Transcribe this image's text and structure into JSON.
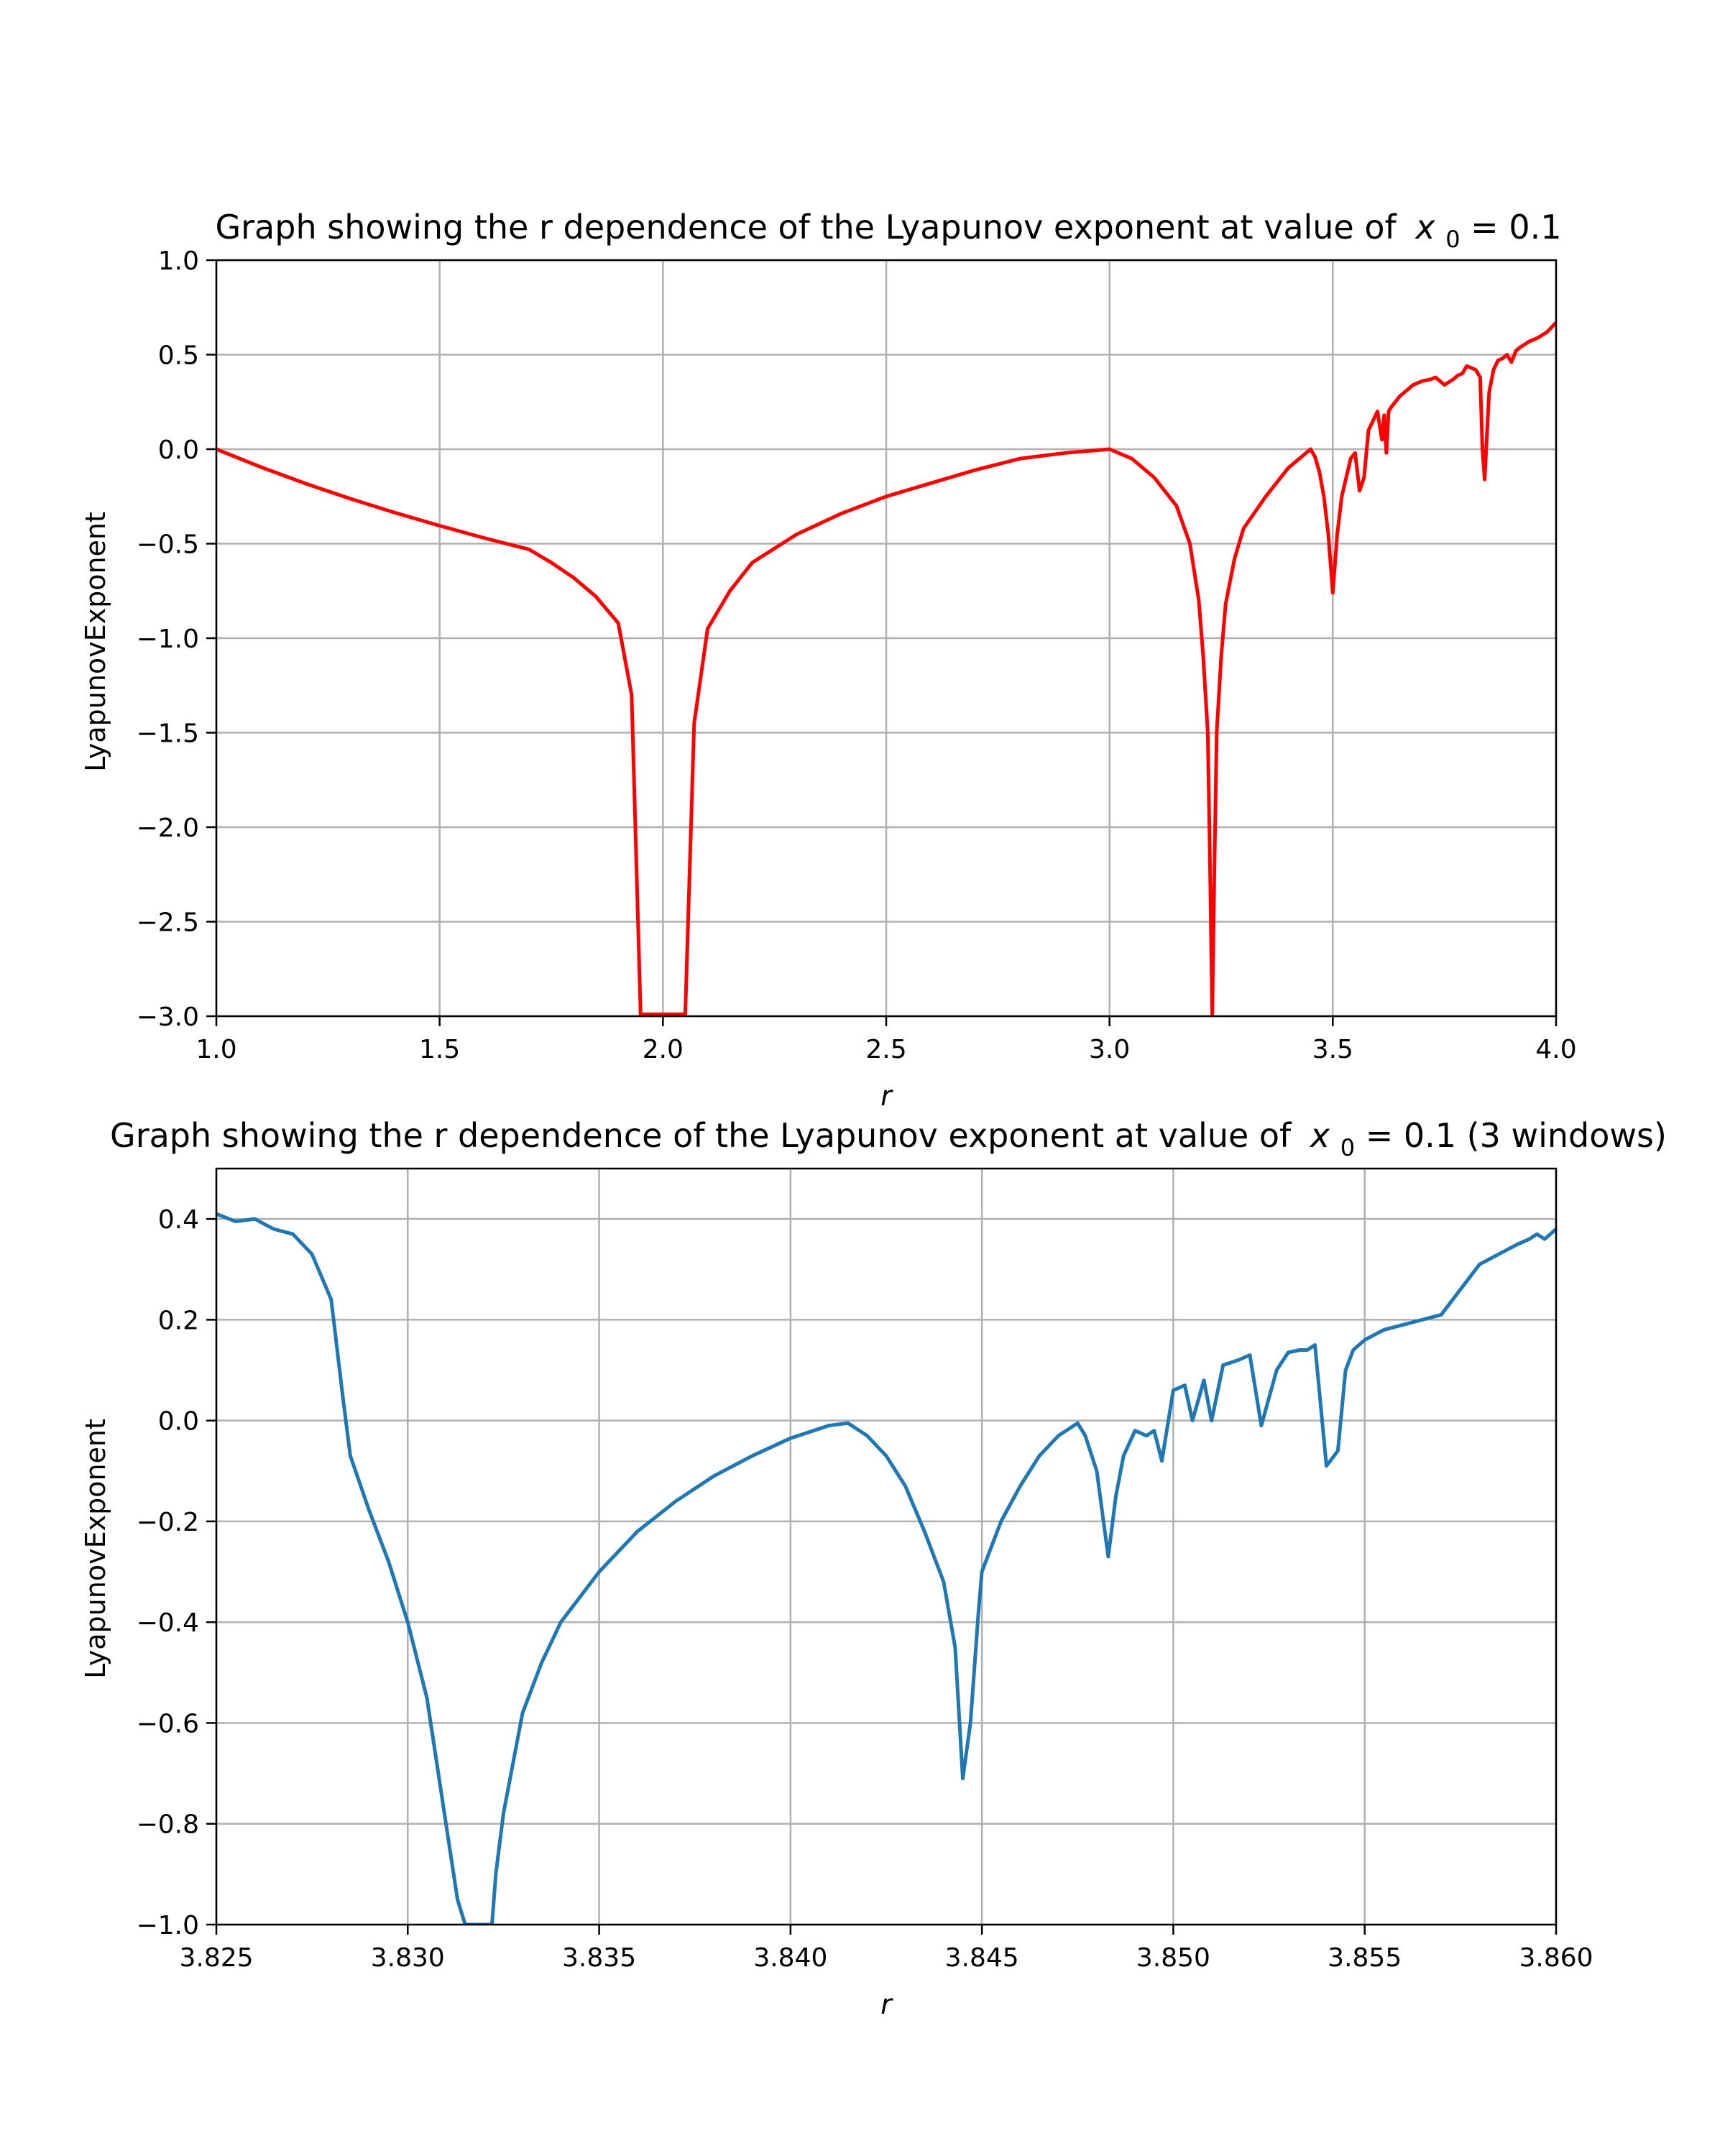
{
  "chart_data": [
    {
      "type": "line",
      "title": "Graph showing the r dependence of the Lyapunov exponent at value of",
      "title_math": "x",
      "title_sub": "0",
      "title_tail": " = 0.1",
      "xlabel": "r",
      "ylabel": "LyapunovExponent",
      "xlim": [
        1.0,
        4.0
      ],
      "ylim": [
        -3.0,
        1.0
      ],
      "grid": true,
      "color": "#ff0000",
      "xticks": [
        "1.0",
        "1.5",
        "2.0",
        "2.5",
        "3.0",
        "3.5",
        "4.0"
      ],
      "yticks": [
        "1.0",
        "0.5",
        "0.0",
        "−0.5",
        "−1.0",
        "−1.5",
        "−2.0",
        "−2.5",
        "−3.0"
      ],
      "series": [
        {
          "x": [
            1.0,
            1.1,
            1.2,
            1.3,
            1.4,
            1.5,
            1.6,
            1.7,
            1.75,
            1.8,
            1.85,
            1.9,
            1.93,
            1.95,
            2.05,
            2.07,
            2.1,
            2.15,
            2.2,
            2.3,
            2.4,
            2.5,
            2.6,
            2.7,
            2.8,
            2.9,
            3.0,
            3.05,
            3.1,
            3.15,
            3.18,
            3.2,
            3.21,
            3.22,
            3.225,
            3.23,
            3.235,
            3.24,
            3.25,
            3.26,
            3.28,
            3.3,
            3.35,
            3.4,
            3.44,
            3.45,
            3.46,
            3.47,
            3.48,
            3.49,
            3.5,
            3.51,
            3.52,
            3.54,
            3.55,
            3.56,
            3.57,
            3.58,
            3.59,
            3.6,
            3.61,
            3.615,
            3.62,
            3.625,
            3.63,
            3.64,
            3.65,
            3.66,
            3.68,
            3.7,
            3.72,
            3.73,
            3.74,
            3.75,
            3.77,
            3.78,
            3.79,
            3.8,
            3.82,
            3.83,
            3.835,
            3.84,
            3.85,
            3.86,
            3.87,
            3.88,
            3.89,
            3.9,
            3.91,
            3.92,
            3.94,
            3.96,
            3.98,
            4.0
          ],
          "y": [
            0.0,
            -0.095,
            -0.182,
            -0.262,
            -0.336,
            -0.405,
            -0.47,
            -0.53,
            -0.6,
            -0.68,
            -0.78,
            -0.92,
            -1.3,
            -2.99,
            -2.99,
            -1.45,
            -0.95,
            -0.75,
            -0.6,
            -0.45,
            -0.34,
            -0.25,
            -0.18,
            -0.11,
            -0.05,
            -0.02,
            0.0,
            -0.05,
            -0.15,
            -0.3,
            -0.5,
            -0.8,
            -1.1,
            -1.5,
            -2.2,
            -3.0,
            -2.2,
            -1.5,
            -1.1,
            -0.82,
            -0.58,
            -0.42,
            -0.25,
            -0.1,
            -0.02,
            0.0,
            -0.04,
            -0.12,
            -0.25,
            -0.45,
            -0.76,
            -0.45,
            -0.25,
            -0.05,
            -0.02,
            -0.22,
            -0.15,
            0.1,
            0.15,
            0.2,
            0.05,
            0.18,
            -0.02,
            0.2,
            0.22,
            0.25,
            0.28,
            0.3,
            0.34,
            0.36,
            0.37,
            0.38,
            0.36,
            0.34,
            0.37,
            0.39,
            0.4,
            0.44,
            0.42,
            0.38,
            0.0,
            -0.16,
            0.3,
            0.42,
            0.47,
            0.48,
            0.5,
            0.46,
            0.52,
            0.54,
            0.57,
            0.59,
            0.62,
            0.67
          ]
        }
      ]
    },
    {
      "type": "line",
      "title": "Graph showing the r dependence of the Lyapunov exponent at value of",
      "title_math": "x",
      "title_sub": "0",
      "title_tail": " = 0.1 (3 windows)",
      "xlabel": "r",
      "ylabel": "LyapunovExponent",
      "xlim": [
        3.825,
        3.86
      ],
      "ylim": [
        -1.0,
        0.5
      ],
      "grid": true,
      "color": "#1f77b4",
      "xticks": [
        "3.825",
        "3.830",
        "3.835",
        "3.840",
        "3.845",
        "3.850",
        "3.855",
        "3.860"
      ],
      "yticks": [
        "0.4",
        "0.2",
        "0.0",
        "−0.2",
        "−0.4",
        "−0.6",
        "−0.8",
        "−1.0"
      ],
      "series": [
        {
          "x": [
            3.825,
            3.8255,
            3.826,
            3.8265,
            3.827,
            3.8275,
            3.828,
            3.8283,
            3.8285,
            3.829,
            3.8295,
            3.83,
            3.8305,
            3.831,
            3.8313,
            3.8315,
            3.8322,
            3.8323,
            3.8325,
            3.8328,
            3.833,
            3.8335,
            3.834,
            3.835,
            3.836,
            3.837,
            3.838,
            3.839,
            3.84,
            3.841,
            3.8415,
            3.842,
            3.8425,
            3.843,
            3.8435,
            3.844,
            3.8443,
            3.8445,
            3.8447,
            3.8449,
            3.845,
            3.8455,
            3.846,
            3.8465,
            3.847,
            3.8475,
            3.8477,
            3.848,
            3.8483,
            3.8485,
            3.8487,
            3.849,
            3.8493,
            3.8495,
            3.8497,
            3.85,
            3.8503,
            3.8505,
            3.8508,
            3.851,
            3.8513,
            3.8517,
            3.852,
            3.8523,
            3.8527,
            3.853,
            3.8533,
            3.8535,
            3.8537,
            3.854,
            3.8543,
            3.8545,
            3.8547,
            3.855,
            3.8555,
            3.856,
            3.8565,
            3.857,
            3.8575,
            3.858,
            3.8585,
            3.859,
            3.8593,
            3.8595,
            3.8597,
            3.86
          ],
          "y": [
            0.41,
            0.395,
            0.4,
            0.38,
            0.37,
            0.33,
            0.24,
            0.05,
            -0.07,
            -0.18,
            -0.28,
            -0.4,
            -0.55,
            -0.8,
            -0.95,
            -1.0,
            -1.0,
            -0.9,
            -0.78,
            -0.66,
            -0.58,
            -0.48,
            -0.4,
            -0.3,
            -0.22,
            -0.16,
            -0.11,
            -0.07,
            -0.035,
            -0.01,
            -0.005,
            -0.03,
            -0.07,
            -0.13,
            -0.22,
            -0.32,
            -0.45,
            -0.71,
            -0.6,
            -0.39,
            -0.3,
            -0.2,
            -0.13,
            -0.07,
            -0.03,
            -0.005,
            -0.03,
            -0.1,
            -0.27,
            -0.15,
            -0.07,
            -0.02,
            -0.03,
            -0.02,
            -0.08,
            0.06,
            0.07,
            -0.0,
            0.08,
            0.0,
            0.11,
            0.12,
            0.13,
            -0.01,
            0.1,
            0.135,
            0.14,
            0.14,
            0.15,
            -0.09,
            -0.06,
            0.1,
            0.14,
            0.16,
            0.18,
            0.19,
            0.2,
            0.21,
            0.26,
            0.31,
            0.33,
            0.35,
            0.36,
            0.37,
            0.36,
            0.38
          ]
        }
      ]
    }
  ]
}
